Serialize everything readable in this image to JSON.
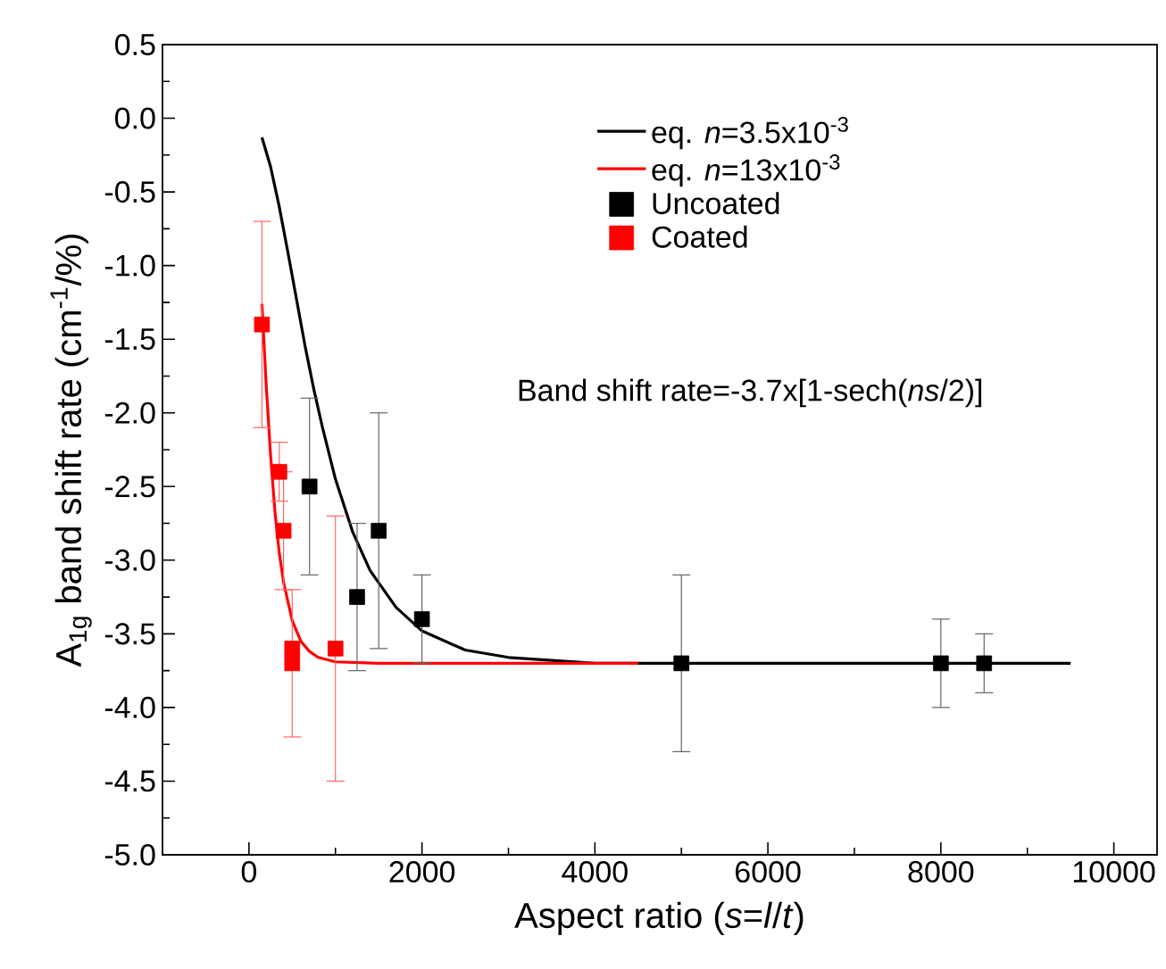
{
  "chart_data": {
    "type": "scatter",
    "xlabel": "Aspect ratio (*s*=*l*/*t*)",
    "ylabel": "A$_{1g}$ band shift rate (cm$^{-1}$/%)",
    "annotations": [
      "Band shift rate=-3.7x[1-sech(*ns*/2)]"
    ],
    "xlim": [
      -1000,
      10500
    ],
    "ylim": [
      -5.0,
      0.5
    ],
    "xticks": [
      0,
      2000,
      4000,
      6000,
      8000,
      10000
    ],
    "yticks": [
      0.5,
      {
        "value": 0,
        "label": "0.0"
      },
      -0.5,
      {
        "value": -1,
        "label": "-1.0"
      },
      -1.5,
      {
        "value": -2,
        "label": "-2.0"
      },
      -2.5,
      {
        "value": -3,
        "label": "-3.0"
      },
      -3.5,
      {
        "value": -4,
        "label": "-4.0"
      },
      -4.5,
      {
        "value": -5,
        "label": "-5.0"
      }
    ],
    "legend": "top right",
    "grid": false,
    "series": [
      {
        "name": "eq. *n*=3.5x10$^{-3}$",
        "type": "line",
        "marker": "none",
        "color": "#000000",
        "x": [
          150,
          250,
          350,
          450,
          550,
          650,
          750,
          850,
          1000,
          1200,
          1400,
          1700,
          2000,
          2500,
          3000,
          4000,
          9500
        ],
        "values": [
          -0.13,
          -0.33,
          -0.6,
          -0.91,
          -1.23,
          -1.55,
          -1.84,
          -2.1,
          -2.45,
          -2.81,
          -3.07,
          -3.32,
          -3.48,
          -3.61,
          -3.66,
          -3.7,
          -3.7
        ]
      },
      {
        "name": "eq. *n*=13x10$^{-3}$",
        "type": "line",
        "marker": "none",
        "color": "#ff0000",
        "x": [
          150,
          200,
          250,
          300,
          350,
          400,
          500,
          600,
          700,
          800,
          1000,
          1500,
          4500
        ],
        "values": [
          -1.26,
          -1.82,
          -2.29,
          -2.67,
          -2.95,
          -3.15,
          -3.41,
          -3.55,
          -3.62,
          -3.66,
          -3.69,
          -3.7,
          -3.7
        ]
      },
      {
        "name": "Uncoated",
        "marker": "square",
        "color": "#000000",
        "x": [
          700,
          1250,
          1500,
          2000,
          5000,
          8000,
          8500
        ],
        "values": [
          -2.5,
          -3.25,
          -2.8,
          -3.4,
          -3.7,
          -3.7,
          -3.7
        ],
        "errors": [
          0.6,
          0.5,
          0.8,
          0.3,
          0.6,
          0.3,
          0.2
        ]
      },
      {
        "name": "Coated",
        "marker": "square",
        "color": "#ff0000",
        "x": [
          150,
          350,
          400,
          500,
          500,
          1000
        ],
        "values": [
          -1.4,
          -2.4,
          -2.8,
          -3.6,
          -3.7,
          -3.6
        ],
        "errors": [
          0.7,
          0.2,
          0.4,
          null,
          0.5,
          0.9
        ]
      }
    ]
  }
}
